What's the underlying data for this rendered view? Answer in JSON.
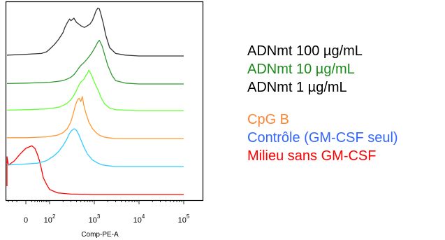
{
  "chart_data": {
    "type": "line",
    "title": "",
    "xlabel": "Comp-PE-A",
    "ylabel": "",
    "x_scale": "logicle",
    "x_ticks": [
      {
        "value": 0,
        "base": "0",
        "exp": ""
      },
      {
        "value": 100,
        "base": "10",
        "exp": "2"
      },
      {
        "value": 1000,
        "base": "10",
        "exp": "3"
      },
      {
        "value": 10000,
        "base": "10",
        "exp": "4"
      },
      {
        "value": 100000,
        "base": "10",
        "exp": "5"
      }
    ],
    "offset_histogram": true,
    "grid": false,
    "legend_position": "right",
    "series": [
      {
        "name": "Milieu sans GM-CSF",
        "color": "#ff0000",
        "x": [
          -150,
          -100,
          -60,
          -30,
          -10,
          0,
          10,
          20,
          30,
          40,
          50,
          60,
          80,
          100,
          150,
          300,
          1000,
          10000,
          100000
        ],
        "y": [
          10,
          45,
          35,
          40,
          48,
          55,
          58,
          55,
          48,
          40,
          30,
          20,
          12,
          6,
          2,
          0.5,
          0,
          0,
          0
        ]
      },
      {
        "name": "Contrôle (GM-CSF seul)",
        "color": "#33ccff",
        "x": [
          -150,
          -50,
          0,
          30,
          80,
          120,
          160,
          200,
          240,
          270,
          300,
          330,
          360,
          400,
          450,
          500,
          600,
          700,
          900,
          1200,
          1500,
          2000,
          3000,
          10000,
          100000
        ],
        "y": [
          2,
          2,
          3,
          4,
          7,
          12,
          18,
          25,
          32,
          38,
          42,
          44,
          45,
          43,
          38,
          32,
          22,
          15,
          8,
          4,
          2,
          1,
          0,
          0,
          0
        ]
      },
      {
        "name": "CpG B",
        "color": "#ff9933",
        "x": [
          -150,
          0,
          80,
          150,
          200,
          250,
          300,
          340,
          380,
          420,
          460,
          500,
          540,
          580,
          650,
          750,
          900,
          1100,
          1300,
          1600,
          2000,
          3000,
          10000,
          100000
        ],
        "y": [
          1,
          1,
          2,
          4,
          7,
          12,
          20,
          30,
          40,
          46,
          48,
          44,
          50,
          40,
          30,
          20,
          12,
          7,
          4,
          2,
          1,
          0,
          0,
          0
        ]
      },
      {
        "name": "ADNmt 1 µg/mL",
        "color": "#66ff33",
        "x": [
          -150,
          0,
          80,
          120,
          160,
          200,
          250,
          300,
          350,
          400,
          450,
          500,
          550,
          600,
          650,
          700,
          750,
          800,
          900,
          1000,
          1200,
          1400,
          1700,
          2200,
          3000,
          5000,
          10000,
          100000
        ],
        "y": [
          0.5,
          1,
          2,
          3,
          4,
          6,
          9,
          13,
          18,
          24,
          30,
          34,
          36,
          38,
          42,
          44,
          48,
          46,
          40,
          34,
          25,
          16,
          8,
          3,
          1,
          0.5,
          0,
          0
        ]
      },
      {
        "name": "ADNmt 10 µg/mL",
        "color": "#339933",
        "x": [
          -150,
          0,
          100,
          150,
          200,
          250,
          300,
          350,
          400,
          450,
          500,
          600,
          700,
          800,
          900,
          1000,
          1100,
          1200,
          1300,
          1500,
          1700,
          2000,
          2500,
          3000,
          5000,
          10000,
          100000
        ],
        "y": [
          0.5,
          1,
          2,
          3,
          4,
          6,
          8,
          11,
          15,
          19,
          22,
          26,
          30,
          34,
          38,
          42,
          46,
          50,
          52,
          45,
          35,
          22,
          10,
          4,
          1,
          0,
          0
        ]
      },
      {
        "name": "ADNmt 100 µg/mL",
        "color": "#333333",
        "x": [
          -150,
          0,
          50,
          80,
          100,
          130,
          160,
          200,
          220,
          250,
          280,
          300,
          350,
          400,
          450,
          500,
          600,
          700,
          800,
          900,
          1000,
          1100,
          1200,
          1300,
          1400,
          1600,
          1800,
          2200,
          3000,
          5000,
          10000,
          100000
        ],
        "y": [
          1,
          2,
          3,
          5,
          8,
          14,
          20,
          28,
          34,
          40,
          44,
          42,
          45,
          40,
          38,
          36,
          34,
          36,
          38,
          42,
          48,
          54,
          57,
          56,
          50,
          38,
          25,
          10,
          3,
          1,
          0,
          0
        ]
      }
    ]
  },
  "legend": [
    {
      "label": "ADNmt 100 µg/mL",
      "color": "#000000"
    },
    {
      "label": "ADNmt 10 µg/mL",
      "color": "#1a8a1a"
    },
    {
      "label": "ADNmt 1 µg/mL",
      "color": "#000000"
    },
    {
      "label": "CpG B",
      "color": "#ff8533"
    },
    {
      "label": "Contrôle (GM-CSF seul)",
      "color": "#3366ff"
    },
    {
      "label": "Milieu sans GM-CSF",
      "color": "#ff0000"
    }
  ]
}
